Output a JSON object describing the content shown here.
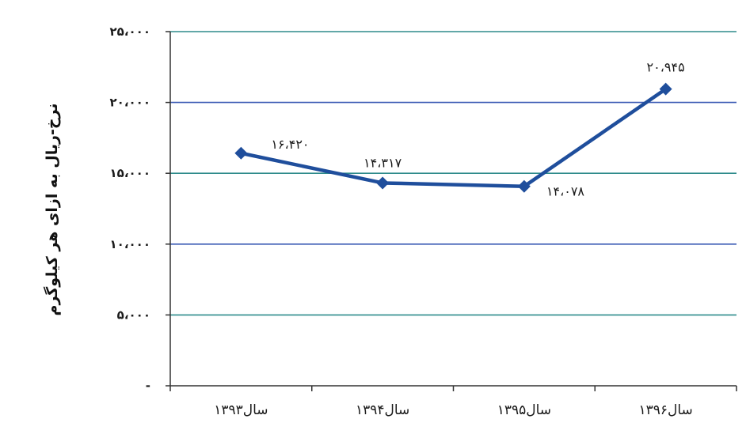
{
  "chart_data": {
    "type": "line",
    "title": "",
    "xlabel": "",
    "ylabel": "نرخ-ریال به ازای هر کیلوگرم",
    "categories": [
      "سال۱۳۹۳",
      "سال۱۳۹۴",
      "سال۱۳۹۵",
      "سال۱۳۹۶"
    ],
    "series": [
      {
        "values": [
          16420,
          14317,
          14078,
          20945
        ]
      }
    ],
    "data_labels": [
      "۱۶،۴۲۰",
      "۱۴،۳۱۷",
      "۱۴،۰۷۸",
      "۲۰،۹۴۵"
    ],
    "ylim": [
      0,
      25000
    ],
    "yticks": [
      0,
      5000,
      10000,
      15000,
      20000,
      25000
    ],
    "ytick_labels": [
      "-",
      "۵،۰۰۰",
      "۱۰،۰۰۰",
      "۱۵،۰۰۰",
      "۲۰،۰۰۰",
      "۲۵،۰۰۰"
    ],
    "grid": true,
    "colors": {
      "line": "#1f4e9c",
      "grid_primary": "#2e8b8b",
      "grid_secondary": "#3b5bb5",
      "axis": "#333333"
    }
  }
}
